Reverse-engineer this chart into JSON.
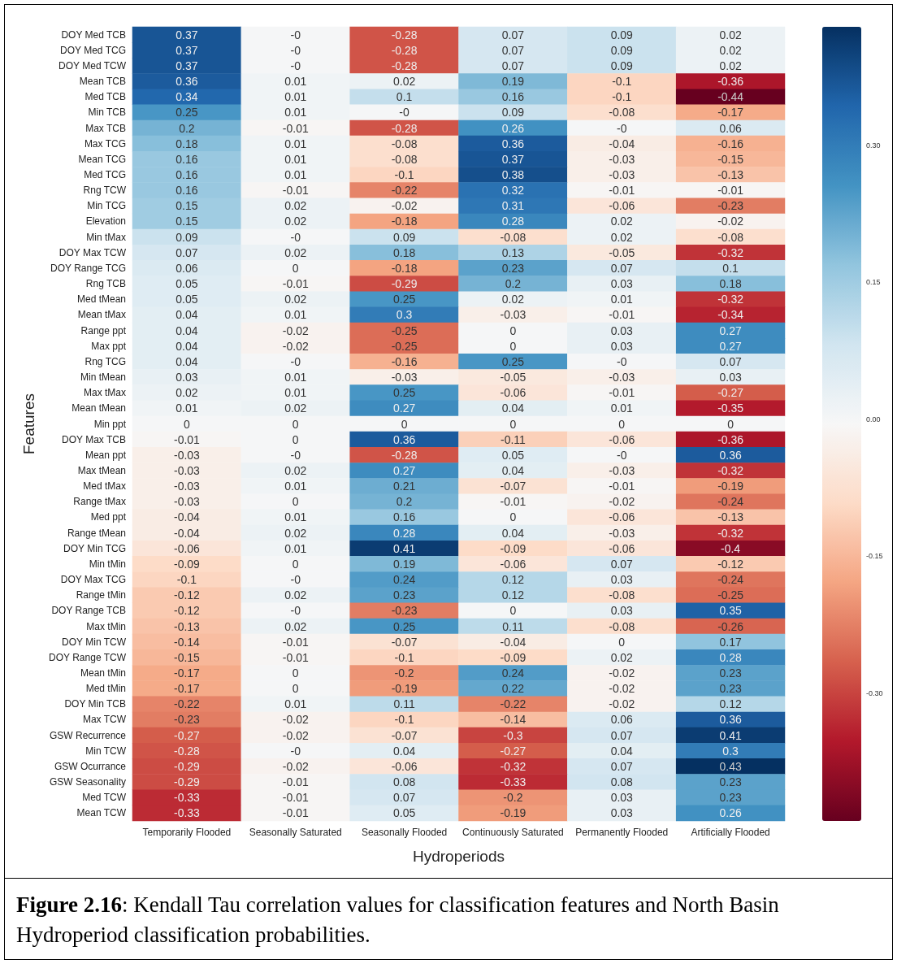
{
  "chart_data": {
    "type": "heatmap",
    "xlabel": "Hydroperiods",
    "ylabel": "Features",
    "annotations": [
      "Figure 2.16:  Kendall Tau correlation values for classification features and North Basin Hydroperiod classification probabilities."
    ],
    "categories": [
      "Temporarily Flooded",
      "Seasonally Saturated",
      "Seasonally Flooded",
      "Continuously Saturated",
      "Permanently Flooded",
      "Artificially Flooded"
    ],
    "y_categories": [
      "DOY Med TCB",
      "DOY Med TCG",
      "DOY Med TCW",
      "Mean TCB",
      "Med TCB",
      "Min TCB",
      "Max TCB",
      "Max TCG",
      "Mean TCG",
      "Med TCG",
      "Rng TCW",
      "Min TCG",
      "Elevation",
      "Min tMax",
      "DOY Max TCW",
      "DOY Range TCG",
      "Rng TCB",
      "Med tMean",
      "Mean tMax",
      "Range ppt",
      "Max ppt",
      "Rng TCG",
      "Min tMean",
      "Max tMax",
      "Mean tMean",
      "Min ppt",
      "DOY Max TCB",
      "Mean ppt",
      "Max tMean",
      "Med tMax",
      "Range tMax",
      "Med ppt",
      "Range tMean",
      "DOY Min TCG",
      "Min tMin",
      "DOY Max TCG",
      "Range tMin",
      "DOY Range TCB",
      "Max tMin",
      "DOY Min TCW",
      "DOY Range TCW",
      "Mean tMin",
      "Med tMin",
      "DOY Min TCB",
      "Max TCW",
      "GSW Recurrence",
      "Min TCW",
      "GSW Ocurrance",
      "GSW Seasonality",
      "Med TCW",
      "Mean TCW"
    ],
    "cells": [
      [
        0.37,
        0,
        -0.28,
        0.07,
        0.09,
        0.02
      ],
      [
        0.37,
        0,
        -0.28,
        0.07,
        0.09,
        0.02
      ],
      [
        0.37,
        0,
        -0.28,
        0.07,
        0.09,
        0.02
      ],
      [
        0.36,
        0.01,
        0.02,
        0.19,
        -0.1,
        -0.36
      ],
      [
        0.34,
        0.01,
        0.1,
        0.16,
        -0.1,
        -0.44
      ],
      [
        0.25,
        0.01,
        0,
        0.09,
        -0.08,
        -0.17
      ],
      [
        0.2,
        -0.01,
        -0.28,
        0.26,
        0,
        0.06
      ],
      [
        0.18,
        0.01,
        -0.08,
        0.36,
        -0.04,
        -0.16
      ],
      [
        0.16,
        0.01,
        -0.08,
        0.37,
        -0.03,
        -0.15
      ],
      [
        0.16,
        0.01,
        -0.1,
        0.38,
        -0.03,
        -0.13
      ],
      [
        0.16,
        -0.01,
        -0.22,
        0.32,
        -0.01,
        -0.01
      ],
      [
        0.15,
        0.02,
        -0.02,
        0.31,
        -0.06,
        -0.23
      ],
      [
        0.15,
        0.02,
        -0.18,
        0.28,
        0.02,
        -0.02
      ],
      [
        0.09,
        0,
        0.09,
        -0.08,
        0.02,
        -0.08
      ],
      [
        0.07,
        0.02,
        0.18,
        0.13,
        -0.05,
        -0.32
      ],
      [
        0.06,
        0,
        -0.18,
        0.23,
        0.07,
        0.1
      ],
      [
        0.05,
        -0.01,
        -0.29,
        0.2,
        0.03,
        0.18
      ],
      [
        0.05,
        0.02,
        0.25,
        0.02,
        0.01,
        -0.32
      ],
      [
        0.04,
        0.01,
        0.3,
        -0.03,
        -0.01,
        -0.34
      ],
      [
        0.04,
        -0.02,
        -0.25,
        0,
        0.03,
        0.27
      ],
      [
        0.04,
        -0.02,
        -0.25,
        0,
        0.03,
        0.27
      ],
      [
        0.04,
        0,
        -0.16,
        0.25,
        0,
        0.07
      ],
      [
        0.03,
        0.01,
        -0.03,
        -0.05,
        -0.03,
        0.03
      ],
      [
        0.02,
        0.01,
        0.25,
        -0.06,
        -0.01,
        -0.27
      ],
      [
        0.01,
        0.02,
        0.27,
        0.04,
        0.01,
        -0.35
      ],
      [
        0,
        0,
        0,
        0,
        0,
        0
      ],
      [
        -0.01,
        0,
        0.36,
        -0.11,
        -0.06,
        -0.36
      ],
      [
        -0.03,
        0,
        -0.28,
        0.05,
        0,
        0.36
      ],
      [
        -0.03,
        0.02,
        0.27,
        0.04,
        -0.03,
        -0.32
      ],
      [
        -0.03,
        0.01,
        0.21,
        -0.07,
        -0.01,
        -0.19
      ],
      [
        -0.03,
        0,
        0.2,
        -0.01,
        -0.02,
        -0.24
      ],
      [
        -0.04,
        0.01,
        0.16,
        0,
        -0.06,
        -0.13
      ],
      [
        -0.04,
        0.02,
        0.28,
        0.04,
        -0.03,
        -0.32
      ],
      [
        -0.06,
        0.01,
        0.41,
        -0.09,
        -0.06,
        -0.4
      ],
      [
        -0.09,
        0,
        0.19,
        -0.06,
        0.07,
        -0.12
      ],
      [
        -0.1,
        0,
        0.24,
        0.12,
        0.03,
        -0.24
      ],
      [
        -0.12,
        0.02,
        0.23,
        0.12,
        -0.08,
        -0.25
      ],
      [
        -0.12,
        0,
        -0.23,
        0,
        0.03,
        0.35
      ],
      [
        -0.13,
        0.02,
        0.25,
        0.11,
        -0.08,
        -0.26
      ],
      [
        -0.14,
        -0.01,
        -0.07,
        -0.04,
        0,
        0.17
      ],
      [
        -0.15,
        -0.01,
        -0.1,
        -0.09,
        0.02,
        0.28
      ],
      [
        -0.17,
        0,
        -0.2,
        0.24,
        -0.02,
        0.23
      ],
      [
        -0.17,
        0,
        -0.19,
        0.22,
        -0.02,
        0.23
      ],
      [
        -0.22,
        0.01,
        0.11,
        -0.22,
        -0.02,
        0.12
      ],
      [
        -0.23,
        -0.02,
        -0.1,
        -0.14,
        0.06,
        0.36
      ],
      [
        -0.27,
        -0.02,
        -0.07,
        -0.3,
        0.07,
        0.41
      ],
      [
        -0.28,
        0,
        0.04,
        -0.27,
        0.04,
        0.3
      ],
      [
        -0.29,
        -0.02,
        -0.06,
        -0.32,
        0.07,
        0.43
      ],
      [
        -0.29,
        -0.01,
        0.08,
        -0.33,
        0.08,
        0.23
      ],
      [
        -0.33,
        -0.01,
        0.07,
        -0.2,
        0.03,
        0.23
      ],
      [
        -0.33,
        -0.01,
        0.05,
        -0.19,
        0.03,
        0.26
      ]
    ],
    "cell_labels": [
      [
        "0.37",
        "-0",
        "-0.28",
        "0.07",
        "0.09",
        "0.02"
      ],
      [
        "0.37",
        "-0",
        "-0.28",
        "0.07",
        "0.09",
        "0.02"
      ],
      [
        "0.37",
        "-0",
        "-0.28",
        "0.07",
        "0.09",
        "0.02"
      ],
      [
        "0.36",
        "0.01",
        "0.02",
        "0.19",
        "-0.1",
        "-0.36"
      ],
      [
        "0.34",
        "0.01",
        "0.1",
        "0.16",
        "-0.1",
        "-0.44"
      ],
      [
        "0.25",
        "0.01",
        "-0",
        "0.09",
        "-0.08",
        "-0.17"
      ],
      [
        "0.2",
        "-0.01",
        "-0.28",
        "0.26",
        "-0",
        "0.06"
      ],
      [
        "0.18",
        "0.01",
        "-0.08",
        "0.36",
        "-0.04",
        "-0.16"
      ],
      [
        "0.16",
        "0.01",
        "-0.08",
        "0.37",
        "-0.03",
        "-0.15"
      ],
      [
        "0.16",
        "0.01",
        "-0.1",
        "0.38",
        "-0.03",
        "-0.13"
      ],
      [
        "0.16",
        "-0.01",
        "-0.22",
        "0.32",
        "-0.01",
        "-0.01"
      ],
      [
        "0.15",
        "0.02",
        "-0.02",
        "0.31",
        "-0.06",
        "-0.23"
      ],
      [
        "0.15",
        "0.02",
        "-0.18",
        "0.28",
        "0.02",
        "-0.02"
      ],
      [
        "0.09",
        "-0",
        "0.09",
        "-0.08",
        "0.02",
        "-0.08"
      ],
      [
        "0.07",
        "0.02",
        "0.18",
        "0.13",
        "-0.05",
        "-0.32"
      ],
      [
        "0.06",
        "0",
        "-0.18",
        "0.23",
        "0.07",
        "0.1"
      ],
      [
        "0.05",
        "-0.01",
        "-0.29",
        "0.2",
        "0.03",
        "0.18"
      ],
      [
        "0.05",
        "0.02",
        "0.25",
        "0.02",
        "0.01",
        "-0.32"
      ],
      [
        "0.04",
        "0.01",
        "0.3",
        "-0.03",
        "-0.01",
        "-0.34"
      ],
      [
        "0.04",
        "-0.02",
        "-0.25",
        "0",
        "0.03",
        "0.27"
      ],
      [
        "0.04",
        "-0.02",
        "-0.25",
        "0",
        "0.03",
        "0.27"
      ],
      [
        "0.04",
        "-0",
        "-0.16",
        "0.25",
        "-0",
        "0.07"
      ],
      [
        "0.03",
        "0.01",
        "-0.03",
        "-0.05",
        "-0.03",
        "0.03"
      ],
      [
        "0.02",
        "0.01",
        "0.25",
        "-0.06",
        "-0.01",
        "-0.27"
      ],
      [
        "0.01",
        "0.02",
        "0.27",
        "0.04",
        "0.01",
        "-0.35"
      ],
      [
        "0",
        "0",
        "0",
        "0",
        "0",
        "0"
      ],
      [
        "-0.01",
        "0",
        "0.36",
        "-0.11",
        "-0.06",
        "-0.36"
      ],
      [
        "-0.03",
        "-0",
        "-0.28",
        "0.05",
        "-0",
        "0.36"
      ],
      [
        "-0.03",
        "0.02",
        "0.27",
        "0.04",
        "-0.03",
        "-0.32"
      ],
      [
        "-0.03",
        "0.01",
        "0.21",
        "-0.07",
        "-0.01",
        "-0.19"
      ],
      [
        "-0.03",
        "0",
        "0.2",
        "-0.01",
        "-0.02",
        "-0.24"
      ],
      [
        "-0.04",
        "0.01",
        "0.16",
        "0",
        "-0.06",
        "-0.13"
      ],
      [
        "-0.04",
        "0.02",
        "0.28",
        "0.04",
        "-0.03",
        "-0.32"
      ],
      [
        "-0.06",
        "0.01",
        "0.41",
        "-0.09",
        "-0.06",
        "-0.4"
      ],
      [
        "-0.09",
        "0",
        "0.19",
        "-0.06",
        "0.07",
        "-0.12"
      ],
      [
        "-0.1",
        "-0",
        "0.24",
        "0.12",
        "0.03",
        "-0.24"
      ],
      [
        "-0.12",
        "0.02",
        "0.23",
        "0.12",
        "-0.08",
        "-0.25"
      ],
      [
        "-0.12",
        "-0",
        "-0.23",
        "0",
        "0.03",
        "0.35"
      ],
      [
        "-0.13",
        "0.02",
        "0.25",
        "0.11",
        "-0.08",
        "-0.26"
      ],
      [
        "-0.14",
        "-0.01",
        "-0.07",
        "-0.04",
        "0",
        "0.17"
      ],
      [
        "-0.15",
        "-0.01",
        "-0.1",
        "-0.09",
        "0.02",
        "0.28"
      ],
      [
        "-0.17",
        "0",
        "-0.2",
        "0.24",
        "-0.02",
        "0.23"
      ],
      [
        "-0.17",
        "0",
        "-0.19",
        "0.22",
        "-0.02",
        "0.23"
      ],
      [
        "-0.22",
        "0.01",
        "0.11",
        "-0.22",
        "-0.02",
        "0.12"
      ],
      [
        "-0.23",
        "-0.02",
        "-0.1",
        "-0.14",
        "0.06",
        "0.36"
      ],
      [
        "-0.27",
        "-0.02",
        "-0.07",
        "-0.3",
        "0.07",
        "0.41"
      ],
      [
        "-0.28",
        "-0",
        "0.04",
        "-0.27",
        "0.04",
        "0.3"
      ],
      [
        "-0.29",
        "-0.02",
        "-0.06",
        "-0.32",
        "0.07",
        "0.43"
      ],
      [
        "-0.29",
        "-0.01",
        "0.08",
        "-0.33",
        "0.08",
        "0.23"
      ],
      [
        "-0.33",
        "-0.01",
        "0.07",
        "-0.2",
        "0.03",
        "0.23"
      ],
      [
        "-0.33",
        "-0.01",
        "0.05",
        "-0.19",
        "0.03",
        "0.26"
      ]
    ],
    "clim": [
      -0.44,
      0.43
    ],
    "cticks": [
      {
        "value": 0.3,
        "label": "0.30"
      },
      {
        "value": 0.15,
        "label": "0.15"
      },
      {
        "value": 0,
        "label": "0.00"
      },
      {
        "value": -0.15,
        "label": "-0.15"
      },
      {
        "value": -0.3,
        "label": "-0.30"
      }
    ]
  }
}
